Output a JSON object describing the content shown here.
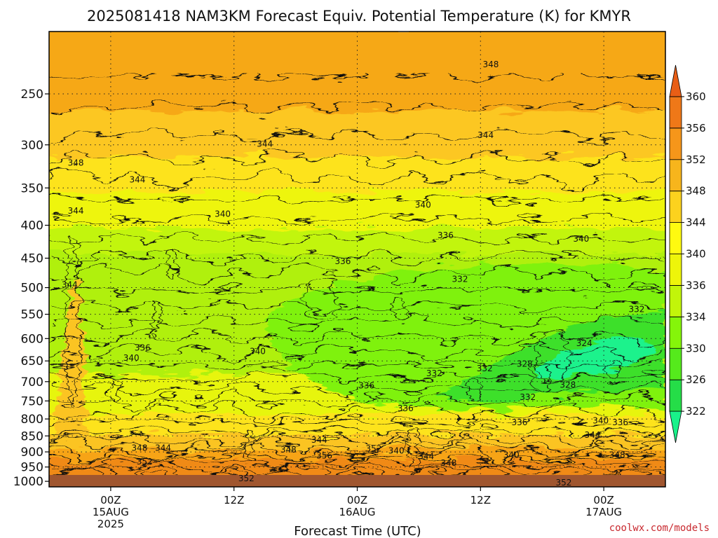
{
  "chart_data": {
    "type": "heatmap",
    "title": "2025081418 NAM3KM Forecast Equiv. Potential Temperature (K) for KMYR",
    "xlabel": "Forecast Time (UTC)",
    "ylabel": "",
    "credit": "coolwx.com/models",
    "x_ticks": [
      {
        "hours": 6,
        "lines": [
          "00Z",
          "15AUG",
          "2025"
        ]
      },
      {
        "hours": 18,
        "lines": [
          "12Z",
          "",
          ""
        ]
      },
      {
        "hours": 30,
        "lines": [
          "00Z",
          "16AUG",
          ""
        ]
      },
      {
        "hours": 42,
        "lines": [
          "12Z",
          "",
          ""
        ]
      },
      {
        "hours": 54,
        "lines": [
          "00Z",
          "17AUG",
          ""
        ]
      }
    ],
    "xlim_hours": [
      0,
      60
    ],
    "y_scale": "log",
    "ylim_hPa": [
      200,
      1020
    ],
    "y_ticks": [
      "250",
      "300",
      "350",
      "400",
      "450",
      "500",
      "550",
      "600",
      "650",
      "700",
      "750",
      "800",
      "850",
      "900",
      "950",
      "1000"
    ],
    "colorbar": {
      "ticks": [
        "322",
        "326",
        "330",
        "334",
        "336",
        "340",
        "344",
        "348",
        "352",
        "356",
        "360"
      ],
      "colors": [
        "#19f28a",
        "#25dd48",
        "#55ea1c",
        "#85f50a",
        "#c2f50a",
        "#eef50a",
        "#fffa10",
        "#fcd21e",
        "#f7b51c",
        "#f6961a",
        "#ef7818",
        "#e85e16"
      ]
    },
    "contour_labels": [
      {
        "text": "348",
        "h": 43,
        "p": 225
      },
      {
        "text": "344",
        "h": 42.5,
        "p": 290
      },
      {
        "text": "344",
        "h": 21,
        "p": 299
      },
      {
        "text": "348",
        "h": 2.6,
        "p": 320
      },
      {
        "text": "344",
        "h": 8.6,
        "p": 340
      },
      {
        "text": "344",
        "h": 2.6,
        "p": 380
      },
      {
        "text": "340",
        "h": 16.9,
        "p": 384
      },
      {
        "text": "340",
        "h": 36.4,
        "p": 372
      },
      {
        "text": "336",
        "h": 38.6,
        "p": 415
      },
      {
        "text": "340",
        "h": 51.8,
        "p": 420
      },
      {
        "text": "336",
        "h": 28.6,
        "p": 455
      },
      {
        "text": "332",
        "h": 40,
        "p": 485
      },
      {
        "text": "344",
        "h": 2.0,
        "p": 495
      },
      {
        "text": "332",
        "h": 57.2,
        "p": 540
      },
      {
        "text": "324",
        "h": 52.1,
        "p": 610
      },
      {
        "text": "336",
        "h": 9.1,
        "p": 620
      },
      {
        "text": "340",
        "h": 20.3,
        "p": 628
      },
      {
        "text": "340",
        "h": 8.0,
        "p": 643
      },
      {
        "text": "328",
        "h": 46.3,
        "p": 657
      },
      {
        "text": "332",
        "h": 42.4,
        "p": 668
      },
      {
        "text": "332",
        "h": 37.5,
        "p": 680
      },
      {
        "text": "336",
        "h": 30.9,
        "p": 710
      },
      {
        "text": "328",
        "h": 50.5,
        "p": 708
      },
      {
        "text": "332",
        "h": 46.6,
        "p": 740
      },
      {
        "text": "336",
        "h": 34.7,
        "p": 770
      },
      {
        "text": "336",
        "h": 45.8,
        "p": 810
      },
      {
        "text": "340",
        "h": 53.7,
        "p": 805
      },
      {
        "text": "336",
        "h": 55.6,
        "p": 810
      },
      {
        "text": "344",
        "h": 52.9,
        "p": 847
      },
      {
        "text": "344",
        "h": 26.3,
        "p": 862
      },
      {
        "text": "348",
        "h": 8.8,
        "p": 887
      },
      {
        "text": "344",
        "h": 11.1,
        "p": 887
      },
      {
        "text": "348",
        "h": 23.3,
        "p": 893
      },
      {
        "text": "352",
        "h": 31.6,
        "p": 890
      },
      {
        "text": "340",
        "h": 33.8,
        "p": 897
      },
      {
        "text": "356",
        "h": 26.8,
        "p": 912
      },
      {
        "text": "344",
        "h": 36.7,
        "p": 915
      },
      {
        "text": "340",
        "h": 45,
        "p": 910
      },
      {
        "text": "348",
        "h": 55.3,
        "p": 910
      },
      {
        "text": "352",
        "h": 9.3,
        "p": 932
      },
      {
        "text": "348",
        "h": 38.9,
        "p": 937
      },
      {
        "text": "352",
        "h": 19.2,
        "p": 990
      },
      {
        "text": "352",
        "h": 50.1,
        "p": 1005
      }
    ]
  }
}
